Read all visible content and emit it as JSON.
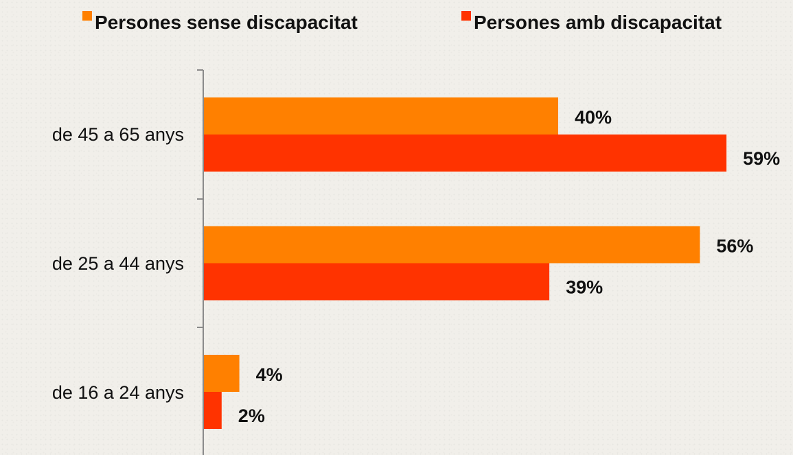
{
  "chart_data": {
    "type": "bar",
    "orientation": "horizontal",
    "categories": [
      "de 45 a 65 anys",
      "de 25 a 44 anys",
      "de 16 a 24 anys"
    ],
    "series": [
      {
        "name": "Persones sense discapacitat",
        "color": "#ff8000",
        "values": [
          40,
          56,
          4
        ],
        "labels": [
          "40%",
          "56%",
          "4%"
        ]
      },
      {
        "name": "Persones amb discapacitat",
        "color": "#ff3300",
        "values": [
          59,
          39,
          2
        ],
        "labels": [
          "59%",
          "39%",
          "2%"
        ]
      }
    ],
    "xlim": [
      0,
      100
    ],
    "grid": false,
    "legend_position": "top"
  }
}
